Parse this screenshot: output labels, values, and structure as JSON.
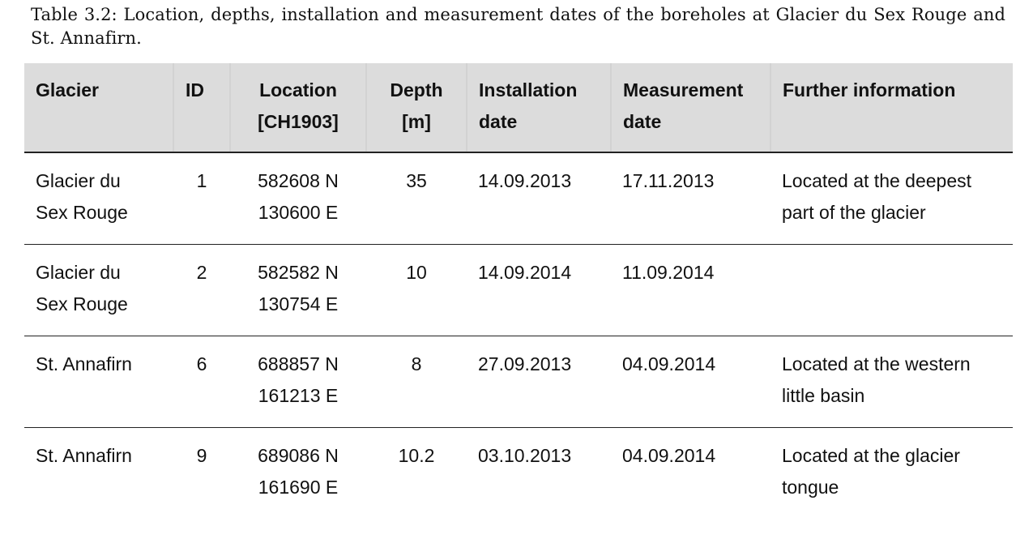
{
  "caption": "Table 3.2: Location, depths, installation and measurement dates of the boreholes at Glacier du Sex Rouge and St. Annafirn.",
  "table": {
    "headers": [
      [
        "Glacier"
      ],
      [
        "ID"
      ],
      [
        "Location",
        "[CH1903]"
      ],
      [
        "Depth",
        "[m]"
      ],
      [
        "Installation",
        "date"
      ],
      [
        "Measurement",
        "date"
      ],
      [
        "Further information"
      ]
    ],
    "rows": [
      {
        "glacier": [
          "Glacier du",
          "Sex Rouge"
        ],
        "id": "1",
        "location": [
          "582608 N",
          "130600 E"
        ],
        "depth": "35",
        "installation": "14.09.2013",
        "measurement": "17.11.2013",
        "info": [
          "Located at the deepest",
          "part of the glacier"
        ]
      },
      {
        "glacier": [
          "Glacier du",
          "Sex Rouge"
        ],
        "id": "2",
        "location": [
          "582582 N",
          "130754 E"
        ],
        "depth": "10",
        "installation": "14.09.2014",
        "measurement": "11.09.2014",
        "info": [
          "",
          ""
        ]
      },
      {
        "glacier": [
          "St. Annafirn",
          ""
        ],
        "id": "6",
        "location": [
          "688857 N",
          "161213 E"
        ],
        "depth": "8",
        "installation": "27.09.2013",
        "measurement": "04.09.2014",
        "info": [
          "Located at the western",
          "little basin"
        ]
      },
      {
        "glacier": [
          "St. Annafirn",
          ""
        ],
        "id": "9",
        "location": [
          "689086 N",
          "161690 E"
        ],
        "depth": "10.2",
        "installation": "03.10.2013",
        "measurement": "04.09.2014",
        "info": [
          "Located at the glacier",
          "tongue"
        ]
      }
    ]
  }
}
